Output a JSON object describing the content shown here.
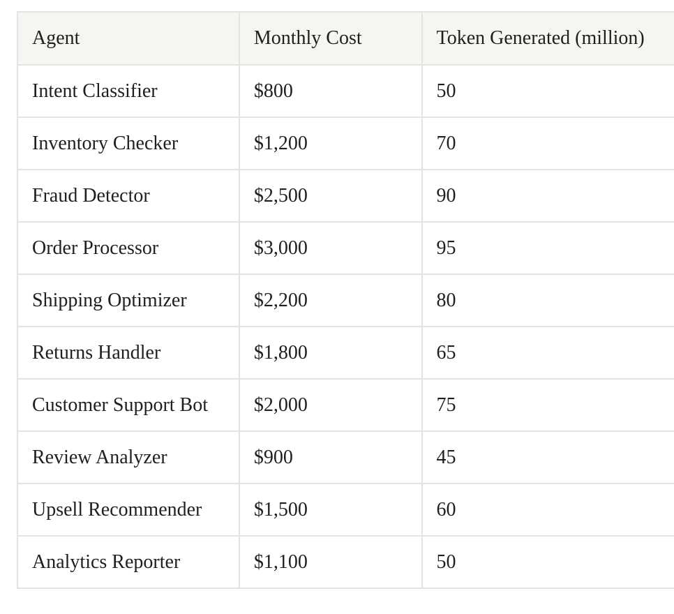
{
  "table": {
    "headers": [
      "Agent",
      "Monthly Cost",
      "Token Generated (million)"
    ],
    "rows": [
      [
        "Intent Classifier",
        "$800",
        "50"
      ],
      [
        "Inventory Checker",
        "$1,200",
        "70"
      ],
      [
        "Fraud Detector",
        "$2,500",
        "90"
      ],
      [
        "Order Processor",
        "$3,000",
        "95"
      ],
      [
        "Shipping Optimizer",
        "$2,200",
        "80"
      ],
      [
        "Returns Handler",
        "$1,800",
        "65"
      ],
      [
        "Customer Support Bot",
        "$2,000",
        "75"
      ],
      [
        "Review Analyzer",
        "$900",
        "45"
      ],
      [
        "Upsell Recommender",
        "$1,500",
        "60"
      ],
      [
        "Analytics Reporter",
        "$1,100",
        "50"
      ]
    ]
  }
}
